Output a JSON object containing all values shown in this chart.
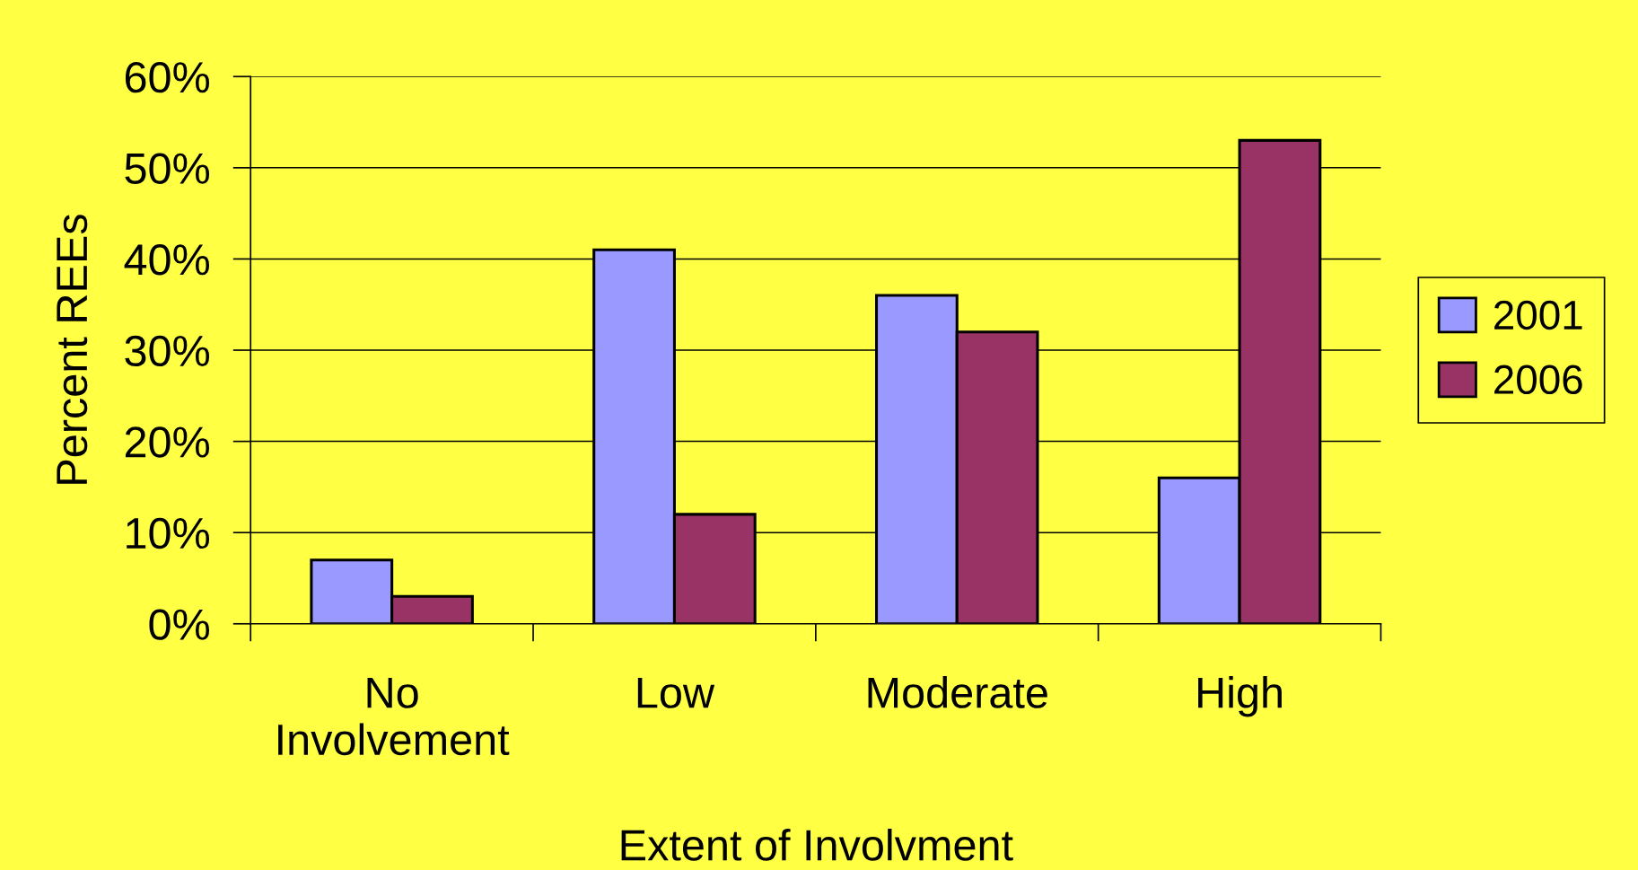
{
  "chart_data": {
    "type": "bar",
    "categories": [
      "No\nInvolvement",
      "Low",
      "Moderate",
      "High"
    ],
    "series": [
      {
        "name": "2001",
        "color": "#9999ff",
        "values": [
          7,
          41,
          36,
          16
        ]
      },
      {
        "name": "2006",
        "color": "#993366",
        "values": [
          3,
          12,
          32,
          53
        ]
      }
    ],
    "xlabel": "Extent of Involvment",
    "ylabel": "Percent REEs",
    "ylim": [
      0,
      60
    ],
    "yticks": [
      {
        "value": 0,
        "label": "0%"
      },
      {
        "value": 10,
        "label": "10%"
      },
      {
        "value": 20,
        "label": "20%"
      },
      {
        "value": 30,
        "label": "30%"
      },
      {
        "value": 40,
        "label": "40%"
      },
      {
        "value": 50,
        "label": "50%"
      },
      {
        "value": 60,
        "label": "60%"
      }
    ],
    "grid": "y",
    "legend": "right"
  }
}
